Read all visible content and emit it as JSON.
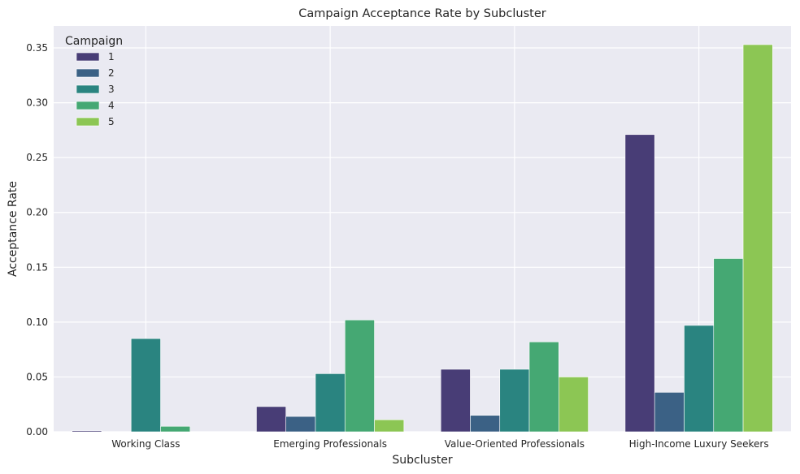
{
  "chart_data": {
    "type": "bar",
    "title": "Campaign Acceptance Rate by Subcluster",
    "xlabel": "Subcluster",
    "ylabel": "Acceptance Rate",
    "categories": [
      "Working Class",
      "Emerging Professionals",
      "Value-Oriented Professionals",
      "High-Income Luxury Seekers"
    ],
    "ylim": [
      0,
      0.37
    ],
    "yticks": [
      "0.00",
      "0.05",
      "0.10",
      "0.15",
      "0.20",
      "0.25",
      "0.30",
      "0.35"
    ],
    "grid": true,
    "legend": {
      "title": "Campaign",
      "placement": "top-left"
    },
    "series": [
      {
        "name": "1",
        "color": "#483d76",
        "values": [
          0.001,
          0.023,
          0.057,
          0.271
        ]
      },
      {
        "name": "2",
        "color": "#3b6185",
        "values": [
          0.0,
          0.014,
          0.015,
          0.036
        ]
      },
      {
        "name": "3",
        "color": "#2a8480",
        "values": [
          0.085,
          0.053,
          0.057,
          0.097
        ]
      },
      {
        "name": "4",
        "color": "#45a873",
        "values": [
          0.005,
          0.102,
          0.082,
          0.158
        ]
      },
      {
        "name": "5",
        "color": "#8cc654",
        "values": [
          0.0,
          0.011,
          0.05,
          0.353
        ]
      }
    ]
  }
}
